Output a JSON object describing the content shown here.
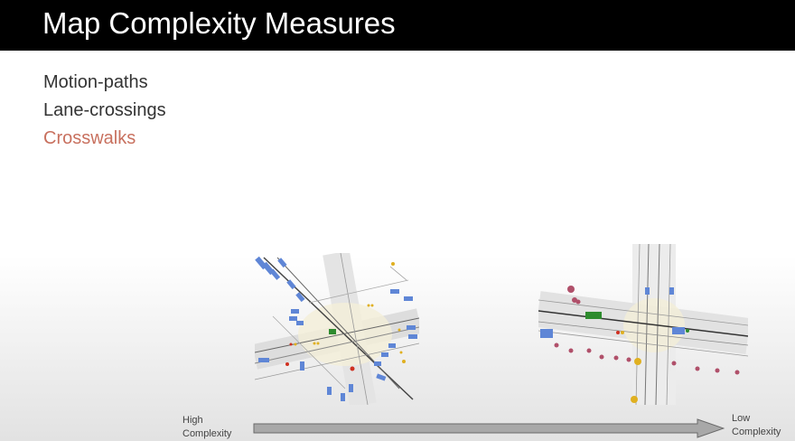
{
  "title": "Map Complexity Measures",
  "measures": [
    {
      "label": "Motion-paths",
      "color": "#333333"
    },
    {
      "label": "Lane-crossings",
      "color": "#333333"
    },
    {
      "label": "Crosswalks",
      "color": "#c8705e"
    }
  ],
  "axis": {
    "high_line1": "High",
    "high_line2": "Complexity",
    "low_line1": "Low",
    "low_line2": "Complexity"
  },
  "colors": {
    "background": "#ffffff",
    "title_bar": "#000000",
    "vehicle": "#5f86d6",
    "pedestrian": "#b0506a",
    "signal_yellow": "#e0b020",
    "signal_red": "#d03020",
    "highlight_green": "#2e8b2e"
  }
}
